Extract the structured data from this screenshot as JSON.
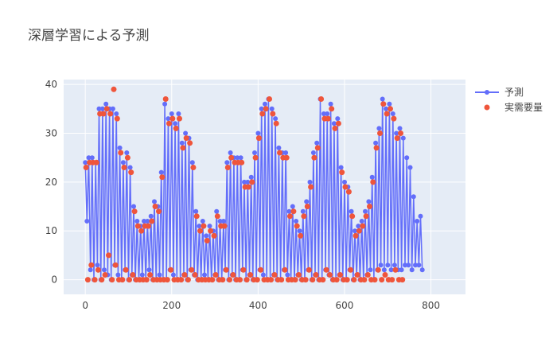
{
  "chart_data": {
    "type": "line",
    "title": "深層学習による予測",
    "xlabel": "",
    "ylabel": "",
    "xlim": [
      -50,
      880
    ],
    "ylim": [
      -3,
      41
    ],
    "xticks": [
      0,
      200,
      400,
      600,
      800
    ],
    "yticks": [
      0,
      10,
      20,
      30,
      40
    ],
    "grid": true,
    "legend_position": "top-right",
    "colors": {
      "prediction": "#636efa",
      "actual": "#ef553b",
      "plot_bg": "#e5ecf6",
      "grid": "#ffffff",
      "text": "#444444"
    },
    "series": [
      {
        "name": "予測",
        "mode": "lines+markers",
        "x_start": 0,
        "x_step": 8,
        "envelope": [
          24,
          25,
          25,
          24,
          35,
          35,
          36,
          35,
          35,
          34,
          27,
          24,
          26,
          23,
          15,
          12,
          11,
          12,
          12,
          13,
          16,
          15,
          22,
          36,
          33,
          34,
          32,
          34,
          28,
          30,
          29,
          24,
          14,
          11,
          12,
          9,
          11,
          10,
          14,
          12,
          12,
          24,
          26,
          25,
          25,
          25,
          20,
          20,
          21,
          26,
          30,
          35,
          36,
          37,
          35,
          33,
          27,
          26,
          26,
          14,
          15,
          12,
          10,
          14,
          16,
          20,
          26,
          28,
          37,
          34,
          34,
          36,
          32,
          33,
          23,
          20,
          19,
          14,
          10,
          11,
          12,
          14,
          16,
          21,
          28,
          31,
          37,
          35,
          36,
          34,
          30,
          31,
          29,
          25,
          23,
          17,
          12,
          13
        ],
        "base": [
          12,
          2,
          0,
          3,
          0,
          2,
          1,
          0,
          3,
          1,
          0,
          2,
          0,
          1,
          0,
          0,
          1,
          0,
          2,
          0,
          0,
          1,
          0,
          0,
          2,
          1,
          0,
          0,
          1,
          0,
          2,
          1,
          0,
          0,
          1,
          0,
          0,
          1,
          0,
          0,
          2,
          0,
          1,
          0,
          0,
          2,
          0,
          1,
          0,
          0,
          2,
          1,
          0,
          0,
          1,
          0,
          0,
          2,
          1,
          0,
          0,
          1,
          0,
          0,
          2,
          0,
          1,
          0,
          0,
          2,
          1,
          0,
          0,
          1,
          0,
          0,
          2,
          0,
          1,
          0,
          0,
          1,
          2,
          0,
          2,
          3,
          2,
          3,
          2,
          3,
          2,
          2,
          3,
          3,
          2,
          3,
          3,
          2
        ]
      },
      {
        "name": "実需要量",
        "mode": "markers",
        "x_start": 2,
        "x_step": 8,
        "count": 92,
        "envelope": [
          23,
          24,
          24,
          24,
          34,
          34,
          35,
          34,
          39,
          33,
          26,
          23,
          25,
          22,
          14,
          11,
          10,
          11,
          11,
          12,
          15,
          14,
          21,
          37,
          32,
          33,
          31,
          33,
          27,
          29,
          28,
          23,
          13,
          10,
          11,
          8,
          10,
          9,
          13,
          11,
          11,
          23,
          25,
          24,
          24,
          24,
          19,
          19,
          20,
          25,
          29,
          34,
          35,
          37,
          34,
          32,
          26,
          25,
          25,
          13,
          14,
          11,
          9,
          13,
          15,
          19,
          25,
          27,
          37,
          33,
          33,
          35,
          31,
          32,
          22,
          19,
          18,
          13,
          9,
          10,
          11,
          13,
          15,
          20,
          27,
          30,
          36,
          34,
          35,
          33,
          29,
          30
        ],
        "base": [
          0,
          3,
          0,
          2,
          0,
          1,
          5,
          0,
          3,
          0,
          0,
          2,
          0,
          1,
          0,
          0,
          0,
          0,
          1,
          0,
          0,
          0,
          0,
          0,
          2,
          0,
          0,
          0,
          1,
          0,
          2,
          1,
          0,
          0,
          0,
          0,
          0,
          1,
          0,
          0,
          2,
          0,
          1,
          0,
          0,
          2,
          0,
          1,
          0,
          0,
          2,
          0,
          0,
          0,
          1,
          0,
          0,
          2,
          0,
          0,
          0,
          1,
          0,
          0,
          2,
          0,
          1,
          0,
          0,
          2,
          1,
          0,
          0,
          1,
          0,
          0,
          2,
          0,
          1,
          0,
          0,
          1,
          0,
          0,
          2,
          0,
          1,
          0,
          0,
          2,
          0,
          0
        ]
      }
    ]
  }
}
